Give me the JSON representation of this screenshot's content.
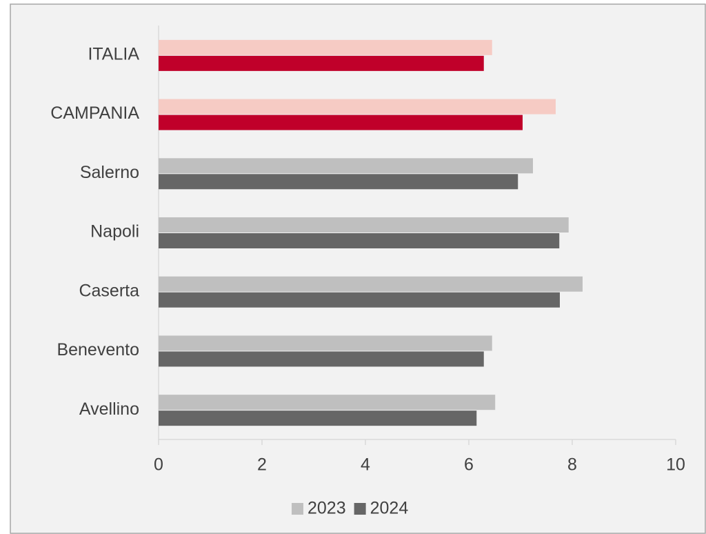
{
  "chart_data": {
    "type": "barh",
    "categories": [
      "ITALIA",
      "CAMPANIA",
      "Salerno",
      "Napoli",
      "Caserta",
      "Benevento",
      "Avellino"
    ],
    "series": [
      {
        "name": "2023",
        "color": "#bfbfbf",
        "colors": [
          "#f6cbc4",
          "#f6cbc4",
          "#bfbfbf",
          "#bfbfbf",
          "#bfbfbf",
          "#bfbfbf",
          "#bfbfbf"
        ],
        "values": [
          6.45,
          7.68,
          7.24,
          7.93,
          8.2,
          6.45,
          6.51
        ]
      },
      {
        "name": "2024",
        "color": "#666666",
        "colors": [
          "#c0002a",
          "#c0002a",
          "#666666",
          "#666666",
          "#666666",
          "#666666",
          "#666666"
        ],
        "values": [
          6.29,
          7.04,
          6.95,
          7.75,
          7.76,
          6.29,
          6.15
        ]
      }
    ],
    "xlim": [
      0,
      10
    ],
    "xticks": [
      0,
      2,
      4,
      6,
      8,
      10
    ],
    "grid": false,
    "legend": "bottom"
  }
}
